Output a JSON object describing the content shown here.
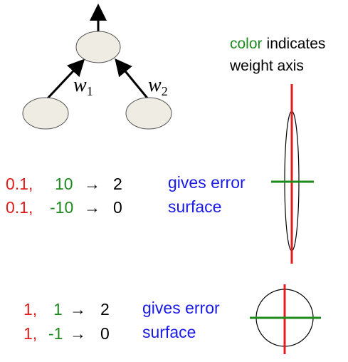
{
  "network": {
    "weight_1_symbol": "w",
    "weight_1_subscript": "1",
    "weight_2_symbol": "w",
    "weight_2_subscript": "2"
  },
  "legend": {
    "word_color": "color",
    "word_indicates": "indicates",
    "line2": "weight axis"
  },
  "example_1": {
    "row1": {
      "x1": "0.1,",
      "x2": "10",
      "arrow": "→",
      "target": "2"
    },
    "row2": {
      "x1": "0.1,",
      "x2": "-10",
      "arrow": "→",
      "target": "0"
    },
    "caption_line1": "gives error",
    "caption_line2": "surface"
  },
  "example_2": {
    "row1": {
      "x1": "1,",
      "x2": "1",
      "arrow": "→",
      "target": "2"
    },
    "row2": {
      "x1": "1,",
      "x2": "-1",
      "arrow": "→",
      "target": "0"
    },
    "caption_line1": "gives error",
    "caption_line2": "surface"
  },
  "colors": {
    "weight_1_axis": "#e21b1b",
    "weight_2_axis": "#1e8a1e",
    "caption": "#1a1ae6",
    "node_fill": "#efece3",
    "ink": "#000000"
  }
}
